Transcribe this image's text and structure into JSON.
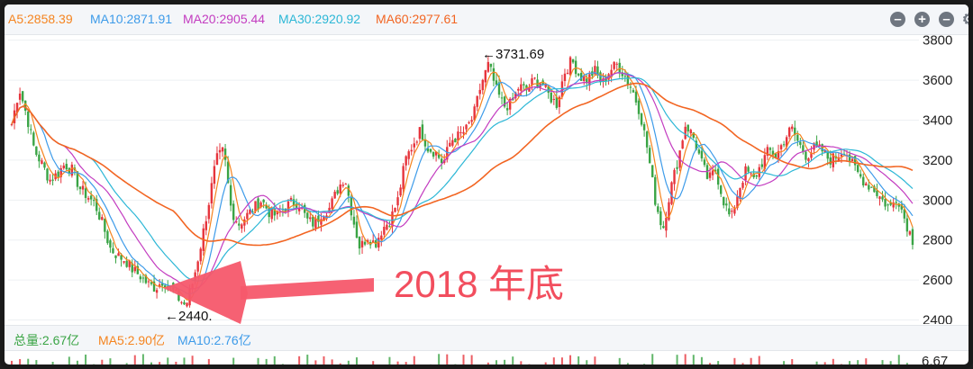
{
  "legend": {
    "ma5": "A5:2858.39",
    "ma10": "MA10:2871.91",
    "ma20": "MA20:2905.44",
    "ma30": "MA30:2920.92",
    "ma60": "MA60:2977.61"
  },
  "colors": {
    "ma5": "#f5841f",
    "ma10": "#3d9be9",
    "ma20": "#c33cc0",
    "ma30": "#2cb7d6",
    "ma60": "#f26522",
    "up": "#e6343c",
    "down": "#3aa445",
    "annotation": "#f24e5e",
    "volume_label": "#3aa445"
  },
  "volume": {
    "total": "总量:2.67亿",
    "ma5": "MA5:2.90亿",
    "ma10": "MA10:2.76亿",
    "axis_top": "6.67"
  },
  "annotations": {
    "high": "←3731.69",
    "low": "←2440.",
    "callout": "2018 年底"
  },
  "chart_data": {
    "type": "candlestick",
    "y_ticks": [
      2400,
      2600,
      2800,
      3000,
      3200,
      3400,
      3600,
      3800
    ],
    "ylim": [
      2380,
      3830
    ],
    "high_value": 3731.69,
    "low_value": 2440,
    "close_path": [
      3380,
      3560,
      3420,
      3250,
      3180,
      3100,
      3130,
      3180,
      3150,
      3060,
      3020,
      2980,
      2880,
      2760,
      2720,
      2700,
      2650,
      2620,
      2580,
      2560,
      2600,
      2560,
      2510,
      2470,
      2600,
      2780,
      2980,
      3200,
      3250,
      2950,
      2880,
      2920,
      2960,
      3000,
      2940,
      2920,
      2960,
      2990,
      2980,
      2900,
      2880,
      2940,
      2960,
      3050,
      3120,
      2920,
      2760,
      2820,
      2780,
      2860,
      2900,
      3000,
      3200,
      3280,
      3350,
      3260,
      3240,
      3180,
      3300,
      3320,
      3350,
      3420,
      3580,
      3680,
      3550,
      3470,
      3480,
      3570,
      3550,
      3600,
      3590,
      3520,
      3480,
      3640,
      3700,
      3620,
      3600,
      3650,
      3580,
      3650,
      3680,
      3620,
      3550,
      3440,
      3250,
      3000,
      2850,
      3050,
      3200,
      3380,
      3320,
      3200,
      3100,
      3150,
      3000,
      2900,
      3050,
      3150,
      3100,
      3180,
      3250,
      3220,
      3300,
      3360,
      3280,
      3220,
      3260,
      3250,
      3200,
      3220,
      3260,
      3180,
      3120,
      3080,
      3050,
      3000,
      2960,
      3020,
      2900,
      2800
    ]
  },
  "controls": {
    "minus1": "–",
    "plus": "+",
    "minus2": "–",
    "gear": "⚙"
  }
}
